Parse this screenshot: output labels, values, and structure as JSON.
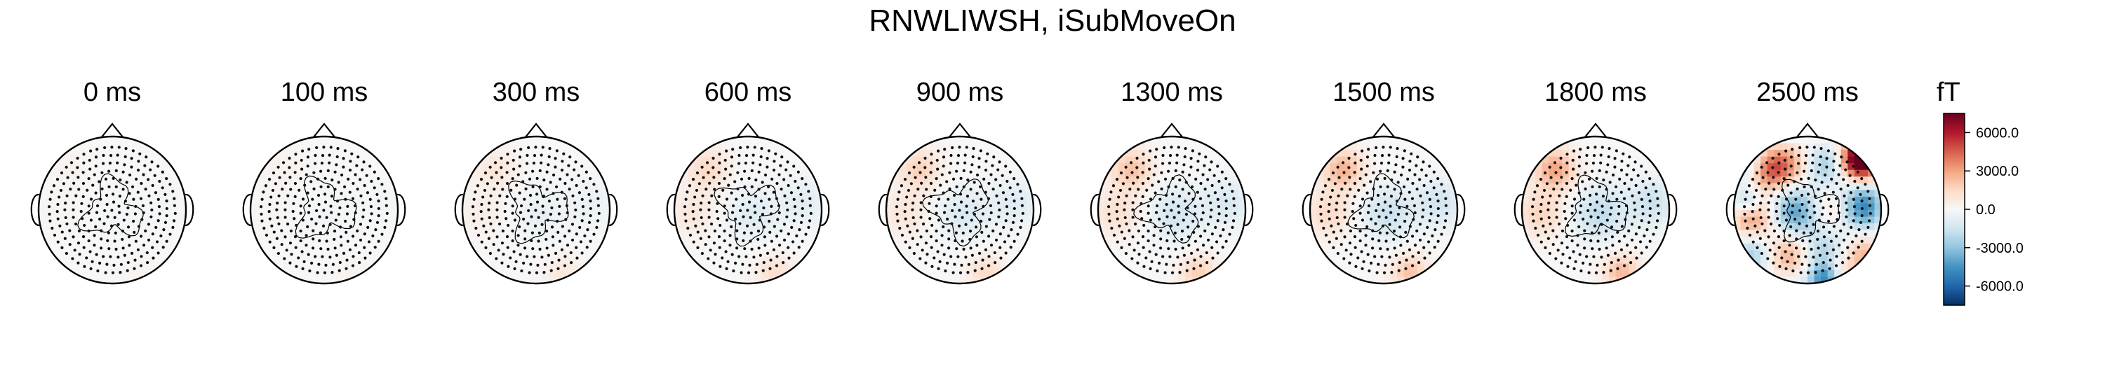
{
  "chart_data": {
    "type": "heatmap",
    "title": "RNWLIWSH, iSubMoveOn",
    "unit": "fT",
    "times": [
      "0 ms",
      "100 ms",
      "300 ms",
      "600 ms",
      "900 ms",
      "1300 ms",
      "1500 ms",
      "1800 ms",
      "2500 ms"
    ],
    "intensity": [
      0.1,
      0.12,
      0.3,
      0.45,
      0.5,
      0.6,
      0.68,
      0.75,
      1.0
    ],
    "colorbar": {
      "ticks": [
        "6000.0",
        "3000.0",
        "0.0",
        "-3000.0",
        "-6000.0"
      ],
      "tick_values": [
        6000,
        3000,
        0,
        -3000,
        -6000
      ],
      "range": [
        -7500,
        7500
      ],
      "colormap": "RdBu_r",
      "colors": [
        "#053061",
        "#2166ac",
        "#4393c3",
        "#92c5de",
        "#d1e5f0",
        "#f7f7f7",
        "#fddbc7",
        "#f4a582",
        "#d6604d",
        "#b2182b",
        "#67001f"
      ]
    }
  }
}
